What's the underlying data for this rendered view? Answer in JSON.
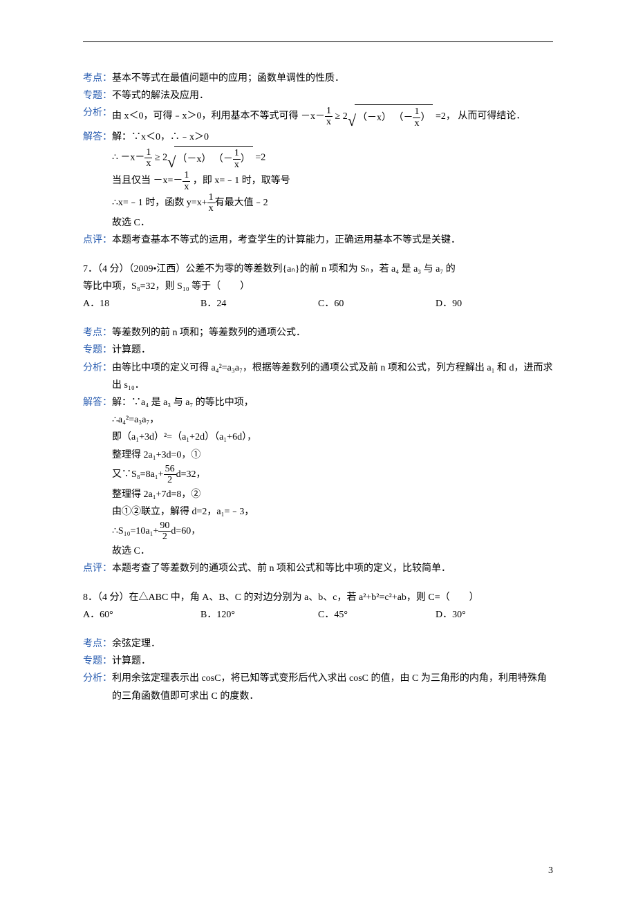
{
  "labels": {
    "kaodian": "考点：",
    "zhuanti": "专题：",
    "fenxi": "分析：",
    "jieda": "解答：",
    "dianping": "点评："
  },
  "q6": {
    "kaodian_text": "基本不等式在最值问题中的应用；函数单调性的性质．",
    "zhuanti_text": "不等式的解法及应用．",
    "fenxi_pre": "由 x＜0，可得﹣x＞0，利用基本不等式可得 ",
    "fenxi_mid1": "－x－",
    "fenxi_mid2": "≥",
    "fenxi_sqrt_coef": "2",
    "fenxi_sqrt_a": "（－x）",
    "fenxi_sqrt_b_pre": "（－",
    "fenxi_sqrt_b_post": "）",
    "fenxi_eq": " =2，",
    "fenxi_tail": "从而可得结论．",
    "jd_l1": "解：∵x＜0，∴﹣x＞0",
    "jd_l2_a": "∴",
    "jd_l2_b": "－x－",
    "jd_l2_c": "≥",
    "jd_l2_eq": " =2",
    "jd_l3_a": "当且仅当",
    "jd_l3_b": "－x=－",
    "jd_l3_c": "，即 x=﹣1 时，取等号",
    "jd_l4_a": "∴x=﹣1 时，函数 y=x+",
    "jd_l4_b": "有最大值﹣2",
    "jd_l5": "故选 C．",
    "dianping_text": "本题考查基本不等式的运用，考查学生的计算能力，正确运用基本不等式是关键．",
    "frac_1": "1",
    "frac_x": "x"
  },
  "q7": {
    "stem_a": "7．（4 分）（2009•江西）公差不为零的等差数列{aₙ}的前 n 项和为 Sₙ，若 a₄ 是 a₃ 与 a₇ 的",
    "stem_b": "等比中项，S₈=32，则 S₁₀ 等于（　　）",
    "optA": "A．18",
    "optB": "B．24",
    "optC": "C．60",
    "optD": "D．90",
    "kaodian_text": "等差数列的前 n 项和；等差数列的通项公式．",
    "zhuanti_text": "计算题．",
    "fenxi_text": "由等比中项的定义可得 a₄²=a₃a₇，根据等差数列的通项公式及前 n 项和公式，列方程解出 a₁ 和 d，进而求出 s₁₀．",
    "jd_l1": "解：∵a₄ 是 a₃ 与 a₇ 的等比中项，",
    "jd_l2": "∴a₄²=a₃a₇，",
    "jd_l3": "即（a₁+3d）²=（a₁+2d）（a₁+6d），",
    "jd_l4": "整理得 2a₁+3d=0，①",
    "jd_l5_a": "又∵",
    "jd_l5_b": "S₈=8a₁+",
    "jd_l5_num": "56",
    "jd_l5_den": "2",
    "jd_l5_c": "d=32",
    "jd_l5_d": "，",
    "jd_l6": "整理得 2a₁+7d=8，②",
    "jd_l7": "由①②联立，解得 d=2，a₁=﹣3，",
    "jd_l8_a": "∴",
    "jd_l8_b": "S₁₀=10a₁+",
    "jd_l8_num": "90",
    "jd_l8_den": "2",
    "jd_l8_c": "d=60",
    "jd_l8_d": "，",
    "jd_l9": "故选 C．",
    "dianping_text": "本题考查了等差数列的通项公式、前 n 项和公式和等比中项的定义，比较简单．"
  },
  "q8": {
    "stem": "8．（4 分）在△ABC 中，角 A、B、C 的对边分别为 a、b、c，若 a²+b²=c²+ab，则 C=（　　）",
    "optA": "A．60°",
    "optB": "B．120°",
    "optC": "C．45°",
    "optD": "D．30°",
    "kaodian_text": "余弦定理．",
    "zhuanti_text": "计算题．",
    "fenxi_text": "利用余弦定理表示出 cosC，将已知等式变形后代入求出 cosC 的值，由 C 为三角形的内角，利用特殊角的三角函数值即可求出 C 的度数．"
  },
  "page_number": "3"
}
